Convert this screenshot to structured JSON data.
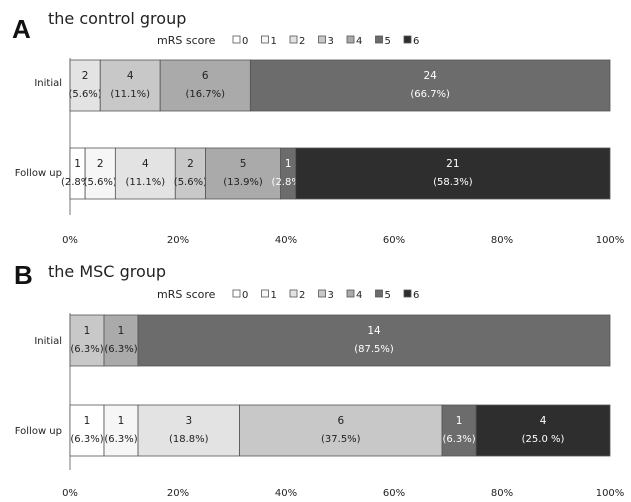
{
  "chart_data": [
    {
      "type": "bar",
      "orientation": "horizontal",
      "stacked": true,
      "panel": "A",
      "title": "the control group",
      "legend_title": "mRS score",
      "legend_entries": [
        "0",
        "1",
        "2",
        "3",
        "4",
        "5",
        "6"
      ],
      "colors": [
        "#ffffff",
        "#f6f6f6",
        "#e3e3e3",
        "#c8c8c8",
        "#aaaaaa",
        "#6c6c6c",
        "#2e2e2e"
      ],
      "categories": [
        "Initial",
        "Follow up"
      ],
      "xlim": [
        0,
        100
      ],
      "x_ticks": [
        "0%",
        "20%",
        "40%",
        "60%",
        "80%",
        "100%"
      ],
      "rows": [
        {
          "label": "Initial",
          "segments": [
            {
              "score": 2,
              "count": "2",
              "pct_label": "(5.6%)",
              "value": 5.6
            },
            {
              "score": 3,
              "count": "4",
              "pct_label": "(11.1%)",
              "value": 11.1
            },
            {
              "score": 4,
              "count": "6",
              "pct_label": "(16.7%)",
              "value": 16.7
            },
            {
              "score": 5,
              "count": "24",
              "pct_label": "(66.7%)",
              "value": 66.7
            }
          ]
        },
        {
          "label": "Follow up",
          "segments": [
            {
              "score": 0,
              "count": "1",
              "pct_label": "(2.8%)",
              "value": 2.8
            },
            {
              "score": 1,
              "count": "2",
              "pct_label": "(5.6%)",
              "value": 5.6
            },
            {
              "score": 2,
              "count": "4",
              "pct_label": "(11.1%)",
              "value": 11.1
            },
            {
              "score": 3,
              "count": "2",
              "pct_label": "(5.6%)",
              "value": 5.6
            },
            {
              "score": 4,
              "count": "5",
              "pct_label": "(13.9%)",
              "value": 13.9
            },
            {
              "score": 5,
              "count": "1",
              "pct_label": "(2.8%)",
              "value": 2.8
            },
            {
              "score": 6,
              "count": "21",
              "pct_label": "(58.3%)",
              "value": 58.3
            }
          ]
        }
      ]
    },
    {
      "type": "bar",
      "orientation": "horizontal",
      "stacked": true,
      "panel": "B",
      "title": "the MSC group",
      "legend_title": "mRS score",
      "legend_entries": [
        "0",
        "1",
        "2",
        "3",
        "4",
        "5",
        "6"
      ],
      "colors": [
        "#ffffff",
        "#f6f6f6",
        "#e3e3e3",
        "#c8c8c8",
        "#aaaaaa",
        "#6c6c6c",
        "#2e2e2e"
      ],
      "categories": [
        "Initial",
        "Follow up"
      ],
      "xlim": [
        0,
        100
      ],
      "x_ticks": [
        "0%",
        "20%",
        "40%",
        "60%",
        "80%",
        "100%"
      ],
      "rows": [
        {
          "label": "Initial",
          "segments": [
            {
              "score": 3,
              "count": "1",
              "pct_label": "(6.3%)",
              "value": 6.3
            },
            {
              "score": 4,
              "count": "1",
              "pct_label": "(6.3%)",
              "value": 6.3
            },
            {
              "score": 5,
              "count": "14",
              "pct_label": "(87.5%)",
              "value": 87.5
            }
          ]
        },
        {
          "label": "Follow up",
          "segments": [
            {
              "score": 0,
              "count": "1",
              "pct_label": "(6.3%)",
              "value": 6.3
            },
            {
              "score": 1,
              "count": "1",
              "pct_label": "(6.3%)",
              "value": 6.3
            },
            {
              "score": 2,
              "count": "3",
              "pct_label": "(18.8%)",
              "value": 18.8
            },
            {
              "score": 3,
              "count": "6",
              "pct_label": "(37.5%)",
              "value": 37.5
            },
            {
              "score": 5,
              "count": "1",
              "pct_label": "(6.3%)",
              "value": 6.3
            },
            {
              "score": 6,
              "count": "4",
              "pct_label": "(25.0 %)",
              "value": 25.0
            }
          ]
        }
      ]
    }
  ]
}
